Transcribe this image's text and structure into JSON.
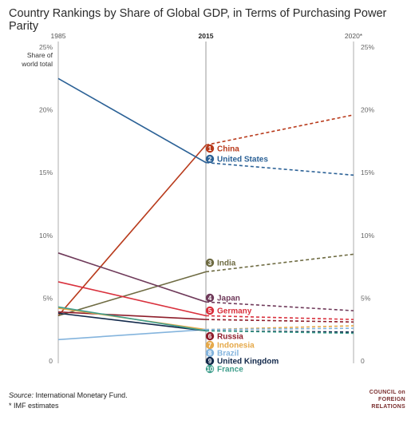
{
  "title": "Country Rankings by Share of Global GDP, in Terms of Purchasing Power Parity",
  "source_label": "Source:",
  "source_text": "International Monetary Fund.",
  "footnote": "* IMF estimates",
  "logo_lines": [
    "COUNCIL on",
    "FOREIGN",
    "RELATIONS"
  ],
  "chart_data": {
    "type": "line",
    "x": [
      "1985",
      "2015",
      "2020*"
    ],
    "ylabel": "Share of world total",
    "ylim": [
      0,
      25
    ],
    "yticks": [
      "0",
      "5%",
      "10%",
      "15%",
      "20%",
      "25%"
    ],
    "estimated_segment": "2015 to 2020* (dashed)",
    "series": [
      {
        "rank": "1",
        "name": "China",
        "color": "#b83a1b",
        "values": [
          3.6,
          17.2,
          19.6
        ]
      },
      {
        "rank": "2",
        "name": "United States",
        "color": "#2b6196",
        "values": [
          22.5,
          15.8,
          14.8
        ]
      },
      {
        "rank": "3",
        "name": "India",
        "color": "#6e6b42",
        "values": [
          3.6,
          7.1,
          8.5
        ]
      },
      {
        "rank": "4",
        "name": "Japan",
        "color": "#6f3a5a",
        "values": [
          8.6,
          4.7,
          4.0
        ]
      },
      {
        "rank": "5",
        "name": "Germany",
        "color": "#d9313d",
        "values": [
          6.3,
          3.6,
          3.3
        ]
      },
      {
        "rank": "6",
        "name": "Russia",
        "color": "#8e1d2a",
        "values": [
          3.9,
          3.3,
          3.1
        ]
      },
      {
        "rank": "7",
        "name": "Indonesia",
        "color": "#e5a94a",
        "values": [
          4.2,
          2.5,
          2.8
        ]
      },
      {
        "rank": "8",
        "name": "Brazil",
        "color": "#84b4dd",
        "values": [
          1.7,
          2.5,
          2.6
        ]
      },
      {
        "rank": "9",
        "name": "United Kingdom",
        "color": "#13294b",
        "values": [
          3.8,
          2.4,
          2.3
        ]
      },
      {
        "rank": "10",
        "name": "France",
        "color": "#3f9e8c",
        "values": [
          4.3,
          2.4,
          2.2
        ]
      }
    ]
  }
}
